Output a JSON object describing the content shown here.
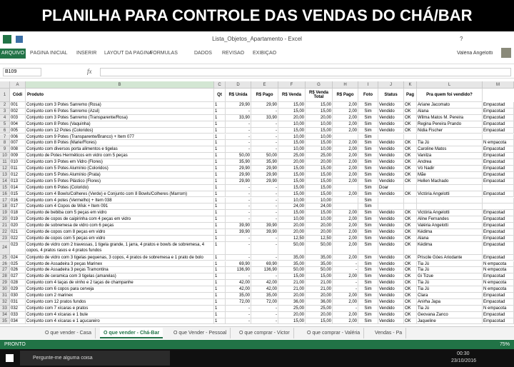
{
  "banner": "PLANILHA PARA CONTROLE DAS VENDAS DO CHÁ/BAR",
  "window": {
    "title": "Lista_Objetos_Apartamento - Excel",
    "help": "?",
    "user": "Valéria Angelotti"
  },
  "ribbon": {
    "file": "ARQUIVO",
    "tabs": [
      "PÁGINA INICIAL",
      "INSERIR",
      "LAYOUT DA PÁGINA",
      "FÓRMULAS",
      "DADOS",
      "REVISÃO",
      "EXIBIÇÃO"
    ]
  },
  "formula_bar": {
    "name_box": "B109",
    "fx": "fx"
  },
  "columns": [
    "A",
    "B",
    "C",
    "D",
    "E",
    "F",
    "G",
    "H",
    "I",
    "J",
    "K",
    "L",
    "M"
  ],
  "row_numbers": [
    1,
    2,
    3,
    4,
    5,
    6,
    7,
    8,
    9,
    10,
    11,
    12,
    13,
    14,
    15,
    16,
    17,
    18,
    19,
    20,
    21,
    22,
    23,
    24,
    25,
    26,
    27,
    28,
    29,
    30,
    31,
    32,
    33,
    34,
    35
  ],
  "table": {
    "headers": [
      "Códi",
      "Produto",
      "Qt",
      "R$ Unida",
      "R$ Pago",
      "R$ Venda",
      "R$ Venda Total",
      "R$ Pago",
      "Foto",
      "Status",
      "Pag",
      "Pra quem foi vendido?"
    ],
    "rows": [
      [
        "001",
        "Conjunto com 3 Potes Sanremo (Rosa)",
        "1",
        "29,90",
        "29,90",
        "15,00",
        "15,00",
        "2,00",
        "Sim",
        "Vendido",
        "OK",
        "Ariane Jacomato",
        "Empacotad"
      ],
      [
        "002",
        "Conjunto com 6 Potes Sanremo (Azul)",
        "1",
        "-",
        "-",
        "15,00",
        "15,00",
        "2,00",
        "Sim",
        "Vendido",
        "OK",
        "Alana",
        "Empacotad"
      ],
      [
        "003",
        "Conjunto com 3 Potes Sanremo (Transparente/Rosa)",
        "1",
        "33,90",
        "33,90",
        "20,00",
        "20,00",
        "2,00",
        "Sim",
        "Vendido",
        "OK",
        "Wilma Matos M. Pereira",
        "Empacotad"
      ],
      [
        "004",
        "Conjunto com 8 Potes (Vaquinha)",
        "1",
        "-",
        "-",
        "10,00",
        "10,00",
        "2,00",
        "Sim",
        "Vendido",
        "OK",
        "Regina Pereira Prando",
        "Empacotad"
      ],
      [
        "005",
        "Conjunto com 12 Potes (Coloridos)",
        "1",
        "-",
        "-",
        "15,00",
        "15,00",
        "2,00",
        "Sim",
        "Vendido",
        "OK",
        "Nidia Fischer",
        "Empacotad"
      ],
      [
        "006",
        "Conjunto com 9 Potes (Transparente/Branco) + Item 077",
        "1",
        "-",
        "-",
        "10,00",
        "10,00",
        null,
        "Sim",
        null,
        null,
        null,
        null
      ],
      [
        "007",
        "Conjunto com 8 Potes (Marie/Flores)",
        "1",
        "-",
        "-",
        "15,00",
        "15,00",
        "2,00",
        "Sim",
        "Vendido",
        "OK",
        "Tia Jú",
        "Ñ empacota"
      ],
      [
        "008",
        "Conjunto com diversos porta alimentos e tigelas",
        "1",
        "-",
        "-",
        "10,00",
        "10,00",
        "2,00",
        "Sim",
        "Vendido",
        "OK",
        "Caroline Matos",
        "Empacotad"
      ],
      [
        "009",
        "Conjunto de Potes Herméticos em vidro com 5 peças",
        "1",
        "50,00",
        "50,00",
        "25,00",
        "25,00",
        "2,00",
        "Sim",
        "Vendido",
        "OK",
        "Vanilza",
        "Empacotad"
      ],
      [
        "010",
        "Conjunto com 3 Potes em Vidro (Flores)",
        "1",
        "35,90",
        "35,90",
        "20,00",
        "20,00",
        "2,00",
        "Sim",
        "Vendido",
        "OK",
        "Andrea",
        "Empacotad"
      ],
      [
        "011",
        "Conjunto com 5 Potes Alumínio (Coloridos)",
        "1",
        "29,90",
        "29,90",
        "15,00",
        "15,00",
        "2,00",
        "Sim",
        "Vendido",
        "OK",
        "Vó Nadir",
        "Empacotad"
      ],
      [
        "012",
        "Conjunto com 5 Potes Alumínio (Prata)",
        "1",
        "29,90",
        "29,90",
        "15,00",
        "15,00",
        "2,00",
        "Sim",
        "Vendido",
        "OK",
        "Mãe",
        "Empacotad"
      ],
      [
        "013",
        "Conjunto com 5 Potes Plástico (Flores)",
        "1",
        "29,90",
        "29,90",
        "15,00",
        "15,00",
        "2,00",
        "Sim",
        "Vendido",
        "OK",
        "Hellen Machado",
        "Empacotad"
      ],
      [
        "014",
        "Conjunto com 6 Potes (Colorido)",
        "1",
        "-",
        "-",
        "15,00",
        "15,00",
        null,
        "Sim",
        "Doar",
        null,
        null,
        null
      ],
      [
        "015",
        "Conjunto com 4 Bowls/Colheres (Verde) e Conjunto com 8 Bowls/Colheres (Marrom)",
        "1",
        "-",
        "-",
        "15,00",
        "15,00",
        "2,00",
        "Sim",
        "Vendido",
        "OK",
        "Victória Angelotti",
        "Empacotad"
      ],
      [
        "016",
        "Conjunto com 4 potes (Vermelho) + Item 038",
        "1",
        "-",
        "-",
        "10,00",
        "10,00",
        null,
        "Sim",
        null,
        null,
        null,
        null
      ],
      [
        "017",
        "Conjunto com 4 Copos de Wisk + Item 091",
        "1",
        "-",
        "-",
        "24,00",
        "24,00",
        null,
        "Sim",
        null,
        null,
        null,
        null
      ],
      [
        "018",
        "Conjunto de bebiba com 5 peças em vidro",
        "1",
        "-",
        "-",
        "15,00",
        "15,00",
        "2,00",
        "Sim",
        "Vendido",
        "OK",
        "Victória Angelotti",
        "Empacotad"
      ],
      [
        "019",
        "Conjunto de copos de caipirinha com 4 peças em vidro",
        "1",
        "-",
        "-",
        "10,00",
        "10,00",
        "2,00",
        "Sim",
        "Vendido",
        "OK",
        "Aline Fernandes",
        "Empacotad"
      ],
      [
        "020",
        "Conjunto de sobremesa de vidro com 6 peças",
        "1",
        "39,90",
        "39,90",
        "20,00",
        "20,00",
        "2,00",
        "Sim",
        "Vendido",
        "OK",
        "Valéria Angelotti",
        "Empacotad"
      ],
      [
        "021",
        "Conjunto de copos com 8 peças em vidro",
        "1",
        "39,90",
        "39,90",
        "20,00",
        "20,00",
        "2,00",
        "Sim",
        "Vendido",
        "OK",
        "Kédima",
        "Empacotad"
      ],
      [
        "022",
        "Conjunto de copos com 5 peças em vidro",
        "1",
        "-",
        "-",
        "12,50",
        "12,50",
        "2,00",
        "Sim",
        "Vendido",
        "OK",
        "Alana",
        "Empacotad"
      ],
      [
        "023",
        "Conjunto de vidro com 2 travessas, 1 tigela grande, 1 jarra, 4 pratos e bowls de sobremesa, 4 copos, 4 pratos rasos e 4 pratos fundos",
        "1",
        "-",
        "-",
        "50,00",
        "50,00",
        "2,00",
        "Sim",
        "Vendido",
        "OK",
        "Kédima",
        "Empacotad"
      ],
      [
        "024",
        "Conjunto de vidro com 3 tigelas pequenas, 3 copos, 4 pratos de sobremesa e 1 prato de bolo",
        "1",
        "-",
        "-",
        "35,00",
        "35,00",
        "2,00",
        "Sim",
        "Vendido",
        "OK",
        "Priscile Góes Ariodante",
        "Empacotad"
      ],
      [
        "025",
        "Conjunto de Assadeira 3 peças Marinex",
        "1",
        "69,90",
        "69,90",
        "35,00",
        "35,00",
        "-",
        "Sim",
        "Vendido",
        "OK",
        "Tia Jú",
        "Ñ empacota"
      ],
      [
        "026",
        "Conjunto de Assadeira 3 peças Tramontina",
        "1",
        "136,90",
        "136,90",
        "50,00",
        "50,00",
        "-",
        "Sim",
        "Vendido",
        "OK",
        "Tia Jú",
        "Ñ empacota"
      ],
      [
        "027",
        "Conjunto de ceramica com 3 tigelas (amarelas)",
        "1",
        "-",
        "-",
        "15,00",
        "15,00",
        "2,00",
        "Sim",
        "Vendido",
        "OK",
        "Gi Tizue",
        "Empacotad"
      ],
      [
        "028",
        "Conjunto com 4 taças de vinho e 2 taças de champanhe",
        "1",
        "42,00",
        "42,00",
        "21,00",
        "21,00",
        "-",
        "Sim",
        "Vendido",
        "OK",
        "Tia Jú",
        "Ñ empacota"
      ],
      [
        "029",
        "Conjunto com 6 copos para cerveja",
        "1",
        "42,00",
        "42,00",
        "21,00",
        "21,00",
        "-",
        "Sim",
        "Vendido",
        "OK",
        "Tia Jú",
        "Ñ empacota"
      ],
      [
        "030",
        "Conjunto com 2 marinex",
        "1",
        "35,00",
        "35,00",
        "20,00",
        "20,00",
        "2,00",
        "Sim",
        "Vendido",
        "OK",
        "Clara",
        "Empacotad"
      ],
      [
        "031",
        "Conjunto com 12 pratos fundos",
        "1",
        "72,00",
        "72,00",
        "36,00",
        "36,00",
        "2,00",
        "Sim",
        "Vendido",
        "OK",
        "Anirha Japa",
        "Empacotad"
      ],
      [
        "032",
        "Conjunto com 7 xícaras e pratos",
        "1",
        "-",
        "-",
        "25,00",
        "25,00",
        "-",
        "Sim",
        "Vendido",
        "OK",
        "Tia Jú",
        "Ñ empacota"
      ],
      [
        "033",
        "Conjunto com 4 xícaras e 1 bule",
        "1",
        "-",
        "-",
        "20,00",
        "20,00",
        "2,00",
        "Sim",
        "Vendido",
        "OK",
        "Geovana Zanco",
        "Empacotad"
      ],
      [
        "034",
        "Conjunto com 4 xícaras e 1 açucareiro",
        "1",
        "-",
        "-",
        "15,00",
        "15,00",
        "2,00",
        "Sim",
        "Vendido",
        "OK",
        "Jaqueline",
        "Empacotad"
      ]
    ]
  },
  "sheet_tabs": [
    "O que vender - Casa",
    "O que vender - Chá-Bar",
    "O que Vender - Pessoal",
    "O que comprar - Victor",
    "O que comprar - Valéria",
    "Vendas - Pa"
  ],
  "status_bar": {
    "status": "PRONTO",
    "zoom": "75%"
  },
  "taskbar": {
    "search": "Pergunte-me alguma coisa",
    "time": "00:30",
    "date": "23/10/2016"
  }
}
